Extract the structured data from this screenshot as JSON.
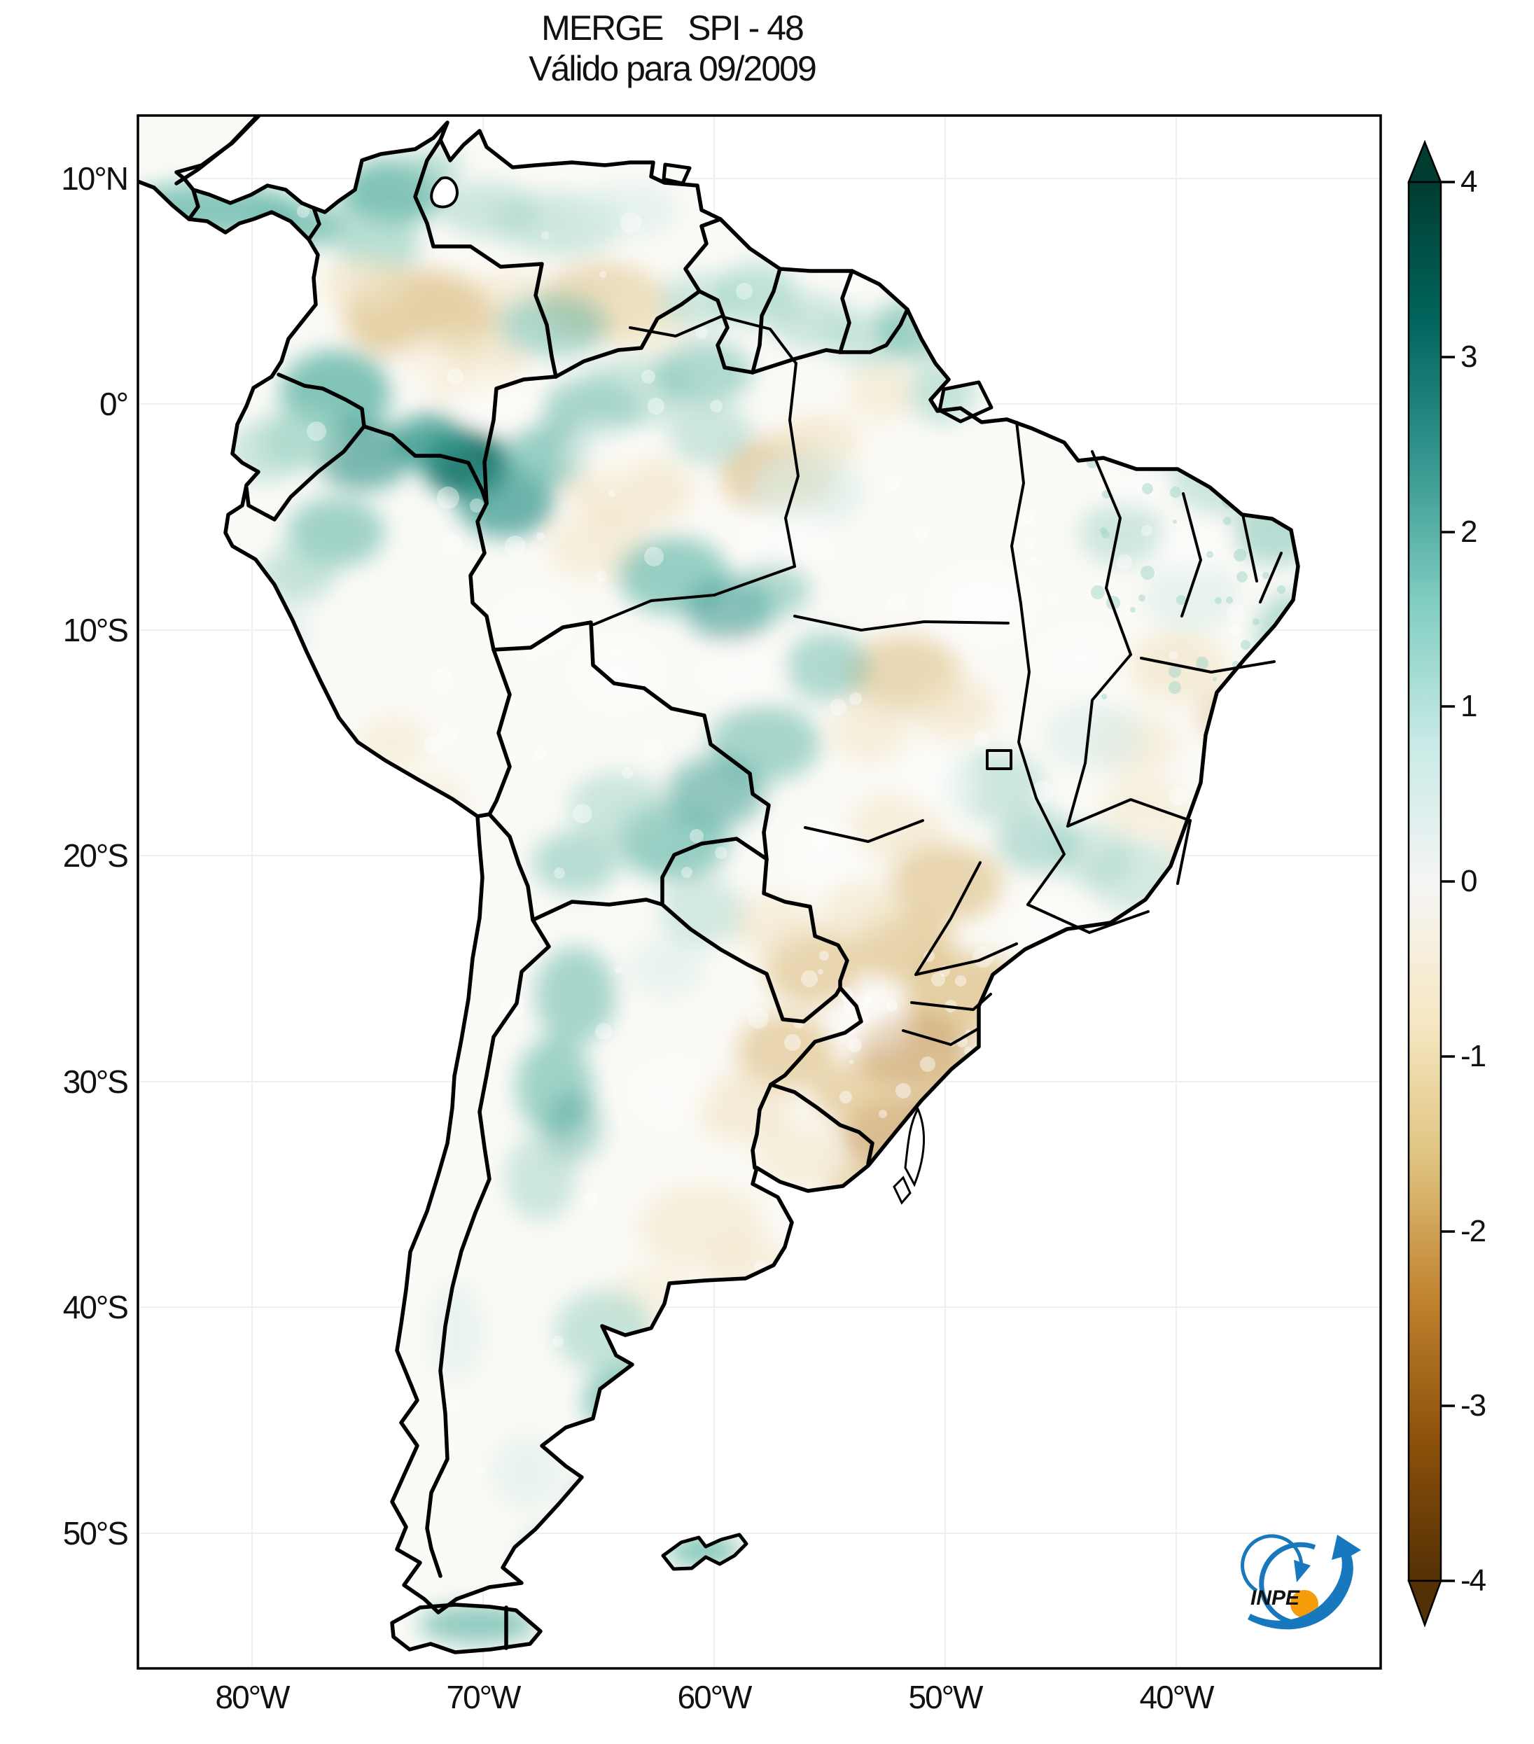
{
  "title": {
    "line1": "MERGE   SPI - 48",
    "line2": "Válido para 09/2009"
  },
  "map": {
    "region": "South America",
    "field": "SPI-48",
    "y_axis_ticks": [
      "10°N",
      "0°",
      "10°S",
      "20°S",
      "30°S",
      "40°S",
      "50°S"
    ],
    "x_axis_ticks": [
      "80°W",
      "70°W",
      "60°W",
      "50°W",
      "40°W"
    ]
  },
  "colorbar": {
    "tick_labels": [
      "4",
      "3",
      "2",
      "1",
      "0",
      "-1",
      "-2",
      "-3",
      "-4"
    ],
    "vmin": -4,
    "vmax": 4,
    "colormap_name": "BrBG",
    "gradient_stops_bottom_to_top": [
      "#543005",
      "#8c510a",
      "#bf812d",
      "#dfc27d",
      "#f6e8c3",
      "#f5f5f5",
      "#c7eae5",
      "#80cdc1",
      "#35978f",
      "#01665e",
      "#003c30"
    ]
  },
  "palette": {
    "teal_xdeep": "#116e64",
    "teal_deep": "#2e948a",
    "teal_mid": "#62b7a8",
    "teal_light": "#a2d5c8",
    "teal_xlight": "#d8ede7",
    "tan_light": "#f0e3c2",
    "tan_mid": "#dec189",
    "tan_deep": "#c3934b",
    "white": "#ffffff",
    "land_base": "#fbfaf6",
    "border": "#000000",
    "gridline": "#f1efe9"
  },
  "logo": {
    "text": "INPE",
    "blue": "#1878be",
    "orange": "#f59d0b"
  }
}
